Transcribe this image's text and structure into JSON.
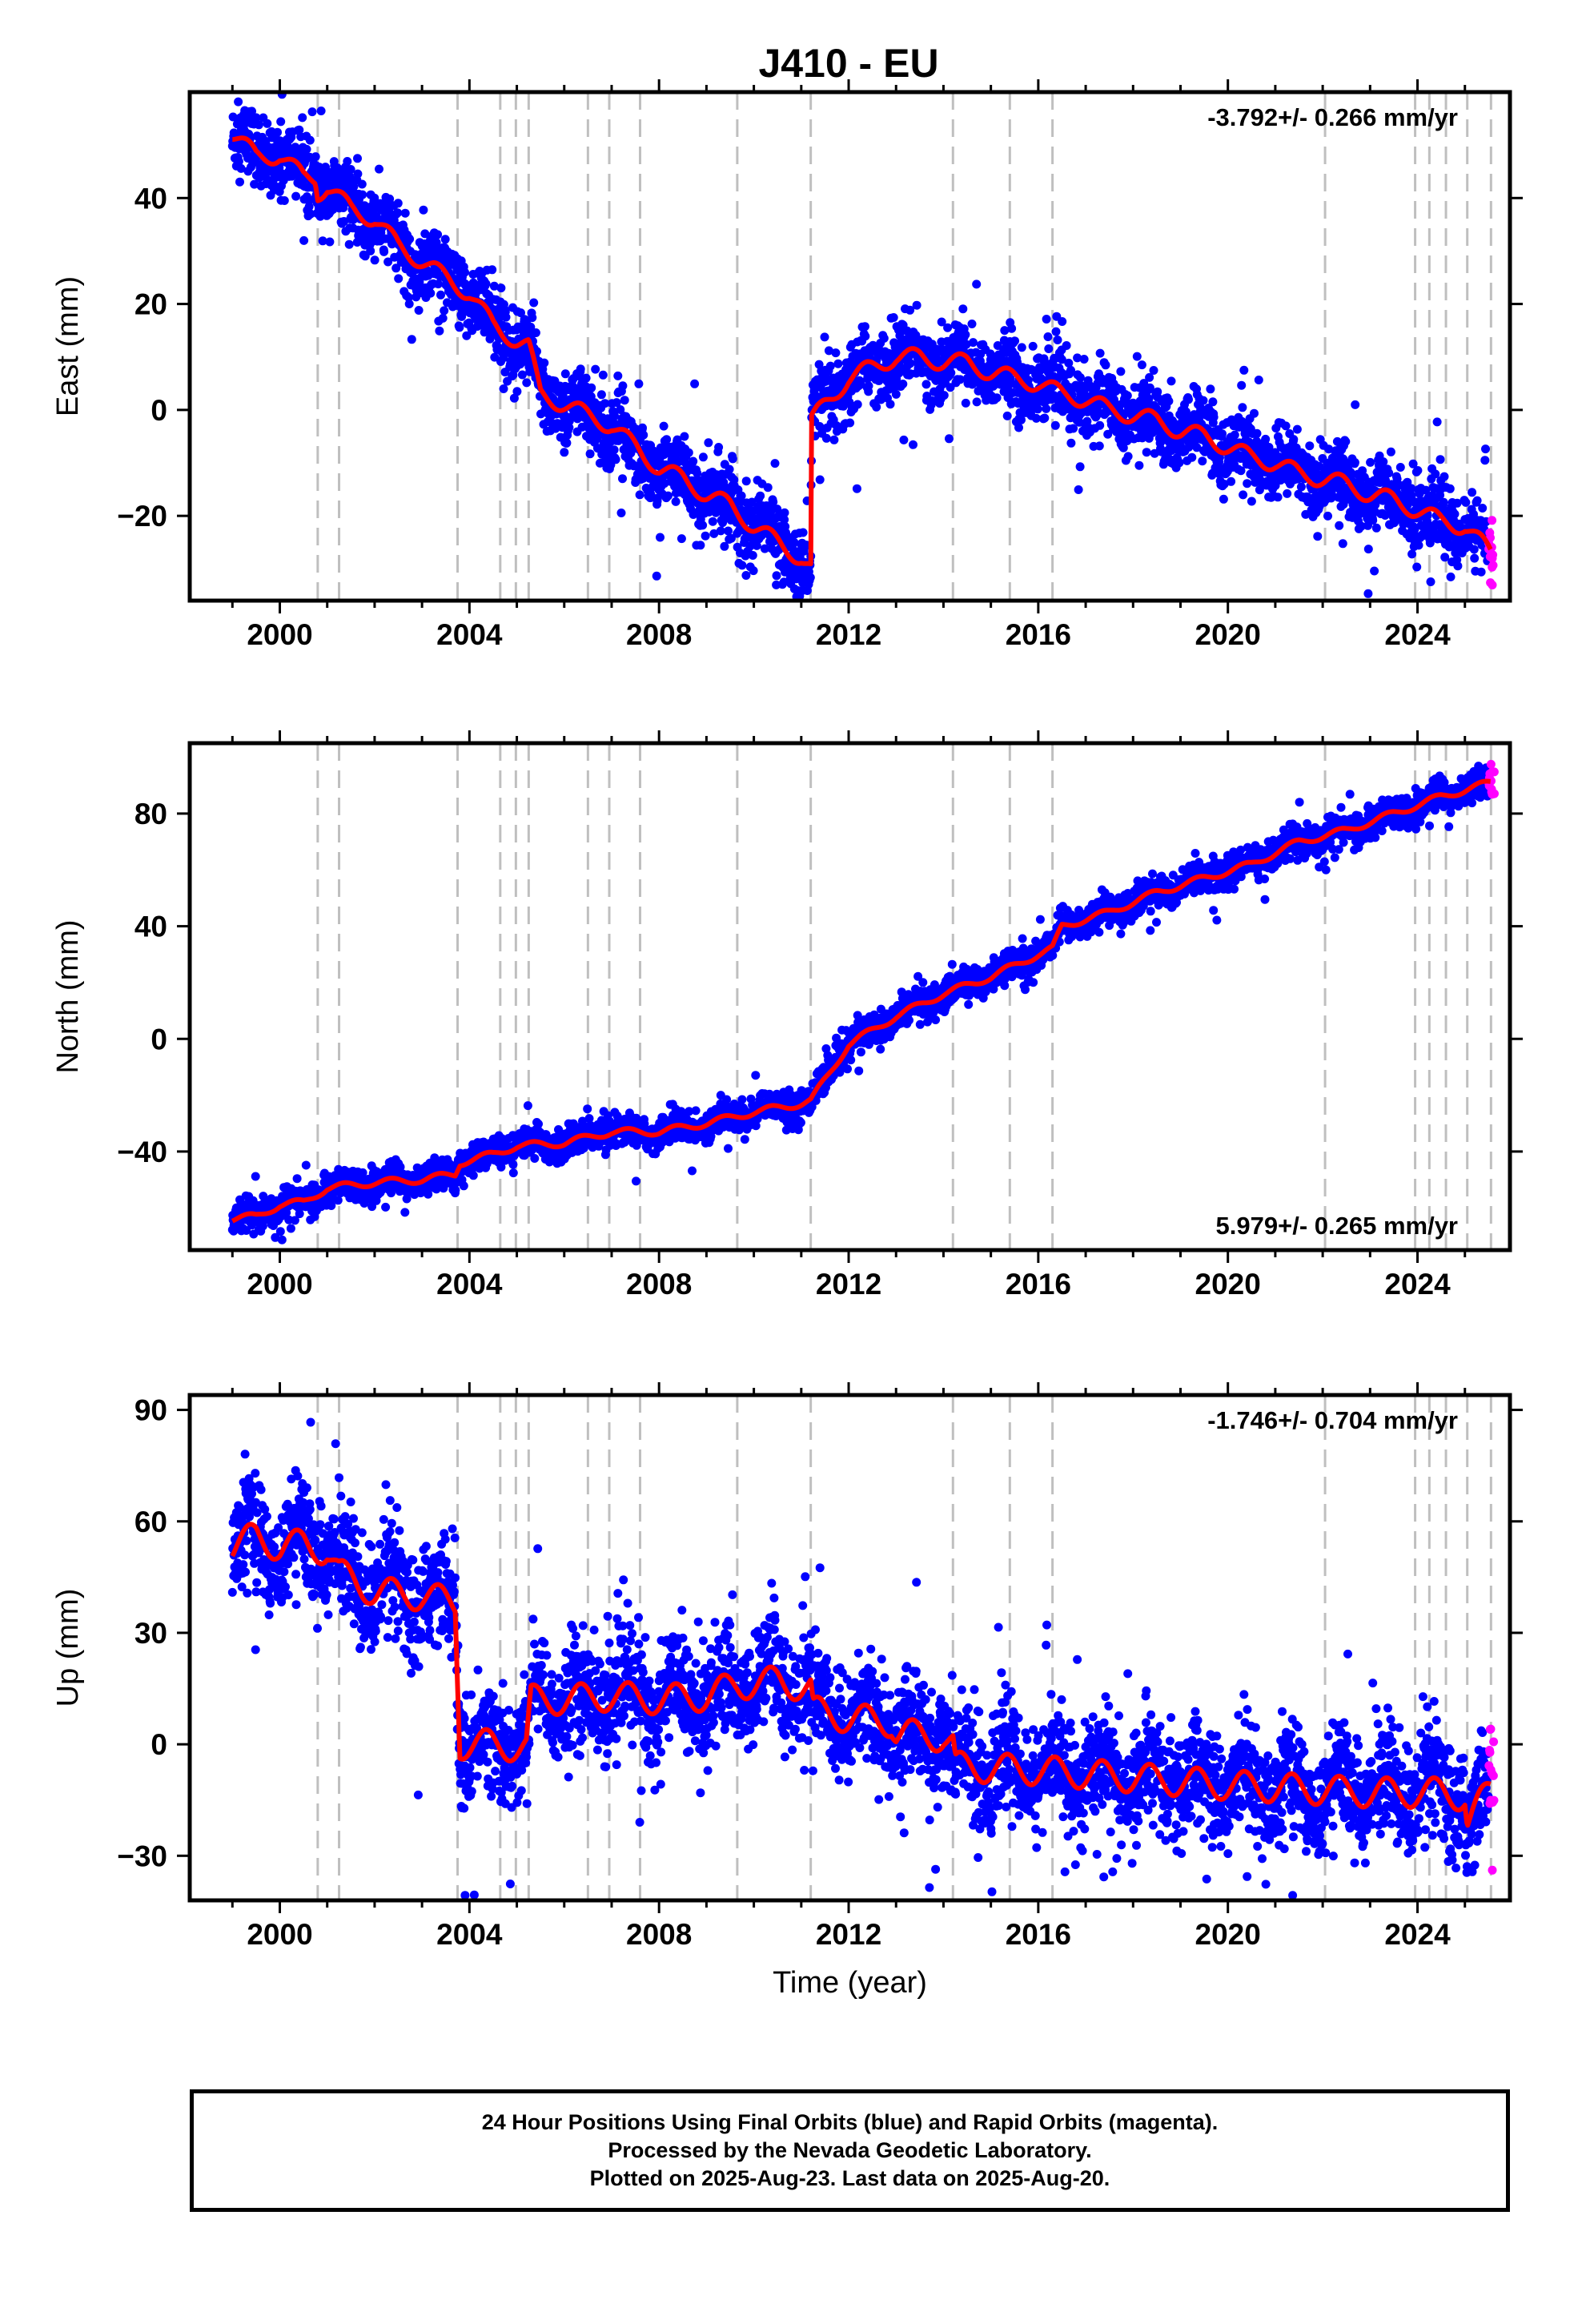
{
  "figure": {
    "title": "J410 - EU"
  },
  "caption": {
    "line1": "24 Hour Positions Using Final Orbits (blue) and Rapid Orbits (magenta).",
    "line2": "Processed by the Nevada Geodetic Laboratory.",
    "line3": "Plotted on 2025-Aug-23. Last data on 2025-Aug-20."
  },
  "colors": {
    "final_orbits": "#0000ff",
    "rapid_orbits": "#ff00ff",
    "model": "#ff0000",
    "event_lines": "#bfbfbf"
  },
  "chart_data": [
    {
      "type": "scatter",
      "ylabel": "East (mm)",
      "xlabel": "",
      "annotation": "-3.792+/- 0.266 mm/yr",
      "annotation_position": "top-right",
      "xlim": [
        1998.1,
        2025.95
      ],
      "ylim": [
        -36,
        60
      ],
      "xticks": [
        2000,
        2004,
        2008,
        2012,
        2016,
        2020,
        2024
      ],
      "yticks": [
        -20,
        0,
        20,
        40
      ],
      "event_lines": [
        2000.8,
        2001.25,
        2003.75,
        2004.65,
        2004.98,
        2005.25,
        2006.5,
        2006.95,
        2007.6,
        2009.65,
        2011.2,
        2014.2,
        2015.4,
        2016.3,
        2022.05,
        2023.95,
        2024.25,
        2024.6,
        2025.05,
        2025.55
      ],
      "model": [
        {
          "x": 1999.0,
          "y": 52
        },
        {
          "x": 1999.5,
          "y": 48
        },
        {
          "x": 2000.0,
          "y": 48
        },
        {
          "x": 2000.5,
          "y": 44
        },
        {
          "x": 2000.75,
          "y": 44
        },
        {
          "x": 2000.8,
          "y": 41
        },
        {
          "x": 2001.0,
          "y": 42
        },
        {
          "x": 2001.5,
          "y": 38
        },
        {
          "x": 2002.0,
          "y": 36
        },
        {
          "x": 2002.5,
          "y": 31
        },
        {
          "x": 2003.0,
          "y": 28
        },
        {
          "x": 2003.5,
          "y": 25
        },
        {
          "x": 2004.0,
          "y": 22
        },
        {
          "x": 2004.5,
          "y": 16
        },
        {
          "x": 2005.0,
          "y": 13
        },
        {
          "x": 2005.25,
          "y": 12
        },
        {
          "x": 2005.5,
          "y": 3
        },
        {
          "x": 2006.0,
          "y": 1
        },
        {
          "x": 2006.5,
          "y": -1
        },
        {
          "x": 2007.0,
          "y": -3
        },
        {
          "x": 2007.5,
          "y": -7
        },
        {
          "x": 2008.0,
          "y": -11
        },
        {
          "x": 2008.5,
          "y": -13
        },
        {
          "x": 2009.0,
          "y": -16
        },
        {
          "x": 2009.5,
          "y": -18
        },
        {
          "x": 2010.0,
          "y": -22
        },
        {
          "x": 2010.5,
          "y": -25
        },
        {
          "x": 2011.0,
          "y": -28
        },
        {
          "x": 2011.2,
          "y": -30
        },
        {
          "x": 2011.22,
          "y": -2
        },
        {
          "x": 2011.5,
          "y": 1
        },
        {
          "x": 2012.0,
          "y": 6
        },
        {
          "x": 2012.5,
          "y": 8
        },
        {
          "x": 2013.0,
          "y": 10
        },
        {
          "x": 2013.5,
          "y": 10
        },
        {
          "x": 2014.0,
          "y": 9
        },
        {
          "x": 2014.5,
          "y": 9
        },
        {
          "x": 2015.0,
          "y": 7
        },
        {
          "x": 2015.5,
          "y": 6
        },
        {
          "x": 2016.0,
          "y": 5
        },
        {
          "x": 2016.5,
          "y": 3
        },
        {
          "x": 2017.0,
          "y": 2
        },
        {
          "x": 2017.5,
          "y": 0
        },
        {
          "x": 2018.0,
          "y": -1
        },
        {
          "x": 2018.5,
          "y": -2
        },
        {
          "x": 2019.0,
          "y": -4
        },
        {
          "x": 2019.5,
          "y": -5
        },
        {
          "x": 2020.0,
          "y": -7
        },
        {
          "x": 2020.5,
          "y": -9
        },
        {
          "x": 2021.0,
          "y": -10
        },
        {
          "x": 2021.5,
          "y": -12
        },
        {
          "x": 2022.0,
          "y": -13
        },
        {
          "x": 2022.5,
          "y": -14
        },
        {
          "x": 2023.0,
          "y": -16
        },
        {
          "x": 2023.5,
          "y": -17
        },
        {
          "x": 2024.0,
          "y": -19
        },
        {
          "x": 2024.5,
          "y": -21
        },
        {
          "x": 2025.0,
          "y": -22
        },
        {
          "x": 2025.55,
          "y": -27
        }
      ],
      "seasonal_amplitude": 2,
      "scatter": {
        "spread": 3.2,
        "outlier_fraction": 0.05
      }
    },
    {
      "type": "scatter",
      "ylabel": "North (mm)",
      "xlabel": "",
      "annotation": "5.979+/- 0.265 mm/yr",
      "annotation_position": "bottom-right",
      "xlim": [
        1998.1,
        2025.95
      ],
      "ylim": [
        -75,
        105
      ],
      "xticks": [
        2000,
        2004,
        2008,
        2012,
        2016,
        2020,
        2024
      ],
      "yticks": [
        -40,
        0,
        40,
        80
      ],
      "event_lines": [
        2000.8,
        2001.25,
        2003.75,
        2004.65,
        2004.98,
        2005.25,
        2006.5,
        2006.95,
        2007.6,
        2009.65,
        2011.2,
        2014.2,
        2015.4,
        2016.3,
        2022.05,
        2023.95,
        2024.25,
        2024.6,
        2025.05,
        2025.55
      ],
      "model": [
        {
          "x": 1999.0,
          "y": -64
        },
        {
          "x": 1999.5,
          "y": -63
        },
        {
          "x": 2000.0,
          "y": -59
        },
        {
          "x": 2000.5,
          "y": -58
        },
        {
          "x": 2001.0,
          "y": -53
        },
        {
          "x": 2002.0,
          "y": -51
        },
        {
          "x": 2003.0,
          "y": -50
        },
        {
          "x": 2003.7,
          "y": -48
        },
        {
          "x": 2003.8,
          "y": -44
        },
        {
          "x": 2004.5,
          "y": -41
        },
        {
          "x": 2005.0,
          "y": -38
        },
        {
          "x": 2006.0,
          "y": -37
        },
        {
          "x": 2007.0,
          "y": -33
        },
        {
          "x": 2008.0,
          "y": -33
        },
        {
          "x": 2009.0,
          "y": -30
        },
        {
          "x": 2010.0,
          "y": -26
        },
        {
          "x": 2011.0,
          "y": -23
        },
        {
          "x": 2011.2,
          "y": -22
        },
        {
          "x": 2011.6,
          "y": -12
        },
        {
          "x": 2012.0,
          "y": -2
        },
        {
          "x": 2013.0,
          "y": 8
        },
        {
          "x": 2014.0,
          "y": 16
        },
        {
          "x": 2015.0,
          "y": 22
        },
        {
          "x": 2016.0,
          "y": 30
        },
        {
          "x": 2016.3,
          "y": 32
        },
        {
          "x": 2016.5,
          "y": 40
        },
        {
          "x": 2017.5,
          "y": 45
        },
        {
          "x": 2018.5,
          "y": 52
        },
        {
          "x": 2019.5,
          "y": 57
        },
        {
          "x": 2020.5,
          "y": 62
        },
        {
          "x": 2021.5,
          "y": 70
        },
        {
          "x": 2022.5,
          "y": 74
        },
        {
          "x": 2023.5,
          "y": 80
        },
        {
          "x": 2024.5,
          "y": 86
        },
        {
          "x": 2025.55,
          "y": 91
        }
      ],
      "seasonal_amplitude": 1.5,
      "scatter": {
        "spread": 2.6,
        "outlier_fraction": 0.04
      }
    },
    {
      "type": "scatter",
      "ylabel": "Up (mm)",
      "xlabel": "Time (year)",
      "annotation": "-1.746+/- 0.704 mm/yr",
      "annotation_position": "top-right",
      "xlim": [
        1998.1,
        2025.95
      ],
      "ylim": [
        -42,
        94
      ],
      "xticks": [
        2000,
        2004,
        2008,
        2012,
        2016,
        2020,
        2024
      ],
      "yticks": [
        -30,
        0,
        30,
        60,
        90
      ],
      "event_lines": [
        2000.8,
        2001.25,
        2003.75,
        2004.65,
        2004.98,
        2005.25,
        2006.5,
        2006.95,
        2007.6,
        2009.65,
        2011.2,
        2014.2,
        2015.4,
        2016.3,
        2022.05,
        2023.95,
        2024.25,
        2024.6,
        2025.05,
        2025.55
      ],
      "model": [
        {
          "x": 1999.0,
          "y": 53
        },
        {
          "x": 1999.5,
          "y": 56
        },
        {
          "x": 2000.0,
          "y": 53
        },
        {
          "x": 2000.5,
          "y": 54
        },
        {
          "x": 2001.0,
          "y": 52
        },
        {
          "x": 2001.25,
          "y": 46
        },
        {
          "x": 2002.0,
          "y": 41
        },
        {
          "x": 2003.0,
          "y": 40
        },
        {
          "x": 2003.7,
          "y": 38
        },
        {
          "x": 2003.8,
          "y": 0
        },
        {
          "x": 2004.5,
          "y": 0
        },
        {
          "x": 2005.2,
          "y": -1
        },
        {
          "x": 2005.3,
          "y": 12
        },
        {
          "x": 2006.0,
          "y": 12
        },
        {
          "x": 2007.0,
          "y": 13
        },
        {
          "x": 2008.0,
          "y": 12
        },
        {
          "x": 2009.0,
          "y": 13
        },
        {
          "x": 2009.65,
          "y": 16
        },
        {
          "x": 2010.5,
          "y": 17
        },
        {
          "x": 2011.2,
          "y": 15
        },
        {
          "x": 2011.25,
          "y": 9
        },
        {
          "x": 2012.0,
          "y": 7
        },
        {
          "x": 2012.9,
          "y": 6
        },
        {
          "x": 2013.0,
          "y": 3
        },
        {
          "x": 2014.0,
          "y": 2
        },
        {
          "x": 2014.2,
          "y": 0
        },
        {
          "x": 2014.25,
          "y": -6
        },
        {
          "x": 2016.0,
          "y": -7
        },
        {
          "x": 2018.0,
          "y": -9
        },
        {
          "x": 2020.0,
          "y": -11
        },
        {
          "x": 2021.5,
          "y": -12
        },
        {
          "x": 2023.0,
          "y": -13
        },
        {
          "x": 2024.5,
          "y": -13
        },
        {
          "x": 2025.0,
          "y": -14
        },
        {
          "x": 2025.05,
          "y": -21
        },
        {
          "x": 2025.55,
          "y": -12
        }
      ],
      "seasonal_amplitude": 5,
      "scatter": {
        "spread": 7,
        "outlier_fraction": 0.05
      }
    }
  ]
}
